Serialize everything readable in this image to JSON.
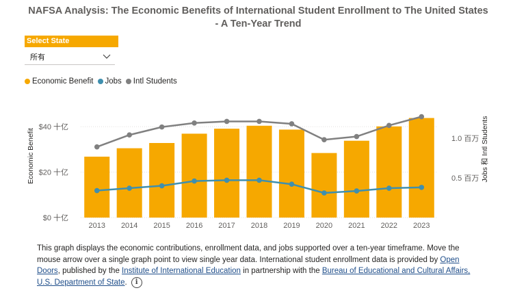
{
  "title": "NAFSA Analysis: The Economic Benefits of International Student Enrollment to The United States - A Ten-Year Trend",
  "slicer": {
    "header": "Select State",
    "value": "所有"
  },
  "colors": {
    "bar": "#f6a800",
    "jobs": "#3f8fae",
    "students": "#808080",
    "slicer": "#f6a800"
  },
  "chart_data": {
    "type": "bar",
    "categories": [
      "2013",
      "2014",
      "2015",
      "2016",
      "2017",
      "2018",
      "2019",
      "2020",
      "2021",
      "2022",
      "2023"
    ],
    "series": [
      {
        "name": "Economic Benefit",
        "type": "bar",
        "axis": "left",
        "values": [
          26.8,
          30.5,
          32.8,
          36.9,
          39.1,
          40.4,
          38.7,
          28.4,
          33.8,
          40.1,
          43.8
        ]
      },
      {
        "name": "Jobs",
        "type": "line",
        "axis": "right",
        "values": [
          0.34,
          0.37,
          0.4,
          0.46,
          0.47,
          0.47,
          0.42,
          0.31,
          0.335,
          0.37,
          0.38
        ]
      },
      {
        "name": "Intl Students",
        "type": "line",
        "axis": "right",
        "values": [
          0.89,
          1.04,
          1.14,
          1.19,
          1.21,
          1.21,
          1.18,
          0.98,
          1.02,
          1.16,
          1.27
        ]
      }
    ],
    "ylabel": "Economic Benefit",
    "y2label": "Jobs 和 Intl Students",
    "ylim": [
      0,
      50
    ],
    "y2lim": [
      0,
      1.55
    ],
    "yticks": [
      "$0 十亿",
      "$20 十亿",
      "$40 十亿"
    ],
    "ytick_values": [
      0,
      20,
      40
    ],
    "y2ticks": [
      "0.5 百万",
      "1.0 百万"
    ],
    "y2tick_values": [
      0.5,
      1.0
    ],
    "legend_position": "top-left"
  },
  "description": {
    "text1": "This graph displays the economic contributions, enrollment data, and jobs supported over a ten-year timeframe. Move the mouse arrow over a single graph point to view single year data. International student enrollment data is provided by ",
    "link1": "Open Doors",
    "text2": ", published by the ",
    "link2": "Institute of International Education",
    "text3": " in partnership with the ",
    "link3": "Bureau of Educational and Cultural Affairs, U.S. Department of State",
    "text4": ".",
    "info_glyph": "i"
  }
}
